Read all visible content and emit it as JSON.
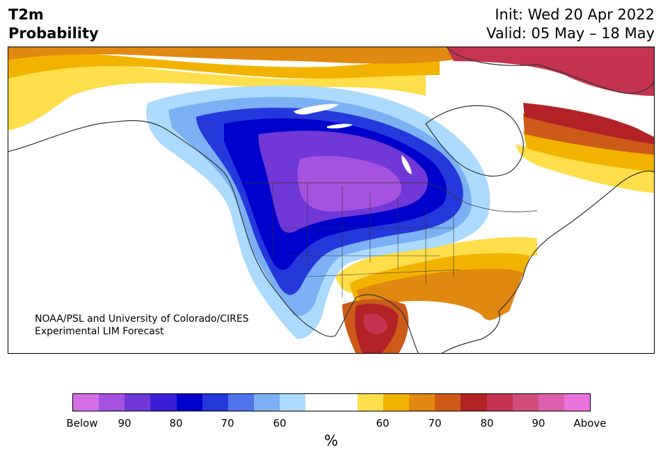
{
  "header": {
    "title_line1": "T2m",
    "title_line2": "Probability",
    "init": "Init: Wed 20 Apr 2022",
    "valid": "Valid: 05 May – 18 May"
  },
  "credit": {
    "line1": "NOAA/PSL and University of Colorado/CIRES",
    "line2": "Experimental LIM Forecast"
  },
  "colorbar": {
    "colors": [
      "#d66fe6",
      "#a552e0",
      "#7038d6",
      "#3a1fd6",
      "#0000cc",
      "#2438dc",
      "#4f74ea",
      "#7bb0f4",
      "#abdafc",
      "#ffffff",
      "#ffffff",
      "#fede4a",
      "#f2b300",
      "#e0880f",
      "#cc5a19",
      "#b22226",
      "#c4344e",
      "#d04e7a",
      "#dc60ac",
      "#e873dc"
    ],
    "tick_labels": [
      "Below",
      "90",
      "80",
      "70",
      "60",
      "60",
      "70",
      "80",
      "90",
      "Above"
    ],
    "unit": "%"
  },
  "map_colors": {
    "cold_light": "#abdafc",
    "cold_mid": "#7bb0f4",
    "cold_blue": "#2438dc",
    "cold_deep": "#0000cc",
    "cold_purple": "#7038d6",
    "cold_core": "#a552e0",
    "warm_light": "#fede4a",
    "warm_mid": "#f2b300",
    "warm_orange": "#e0880f",
    "warm_dark": "#cc5a19",
    "warm_red": "#b22226",
    "warm_rose": "#c4344e",
    "land_outline": "#333333"
  }
}
